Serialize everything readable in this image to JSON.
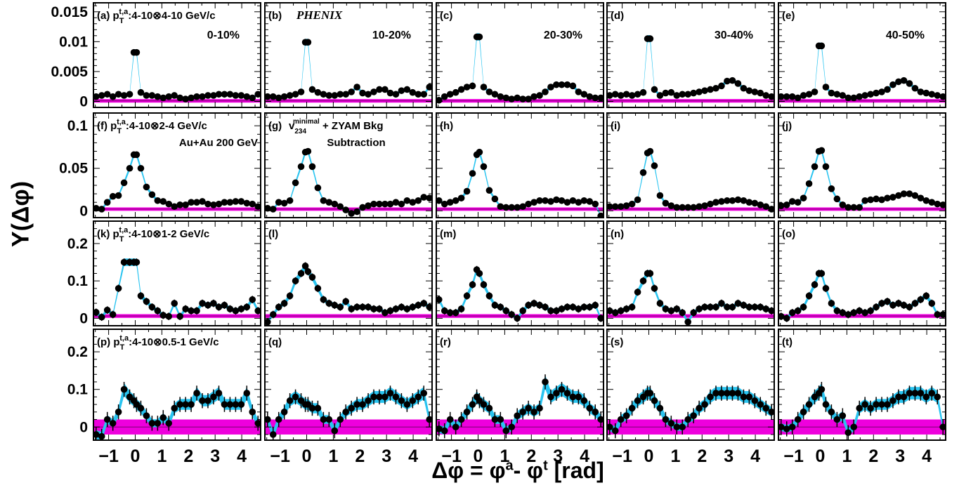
{
  "chart_data": {
    "type": "scatter",
    "grid": false,
    "y_axis_label": "Y(Δφ)",
    "x_axis_label": "Δφ = φa- φt [rad]",
    "x_axis_parts": {
      "lead": "Δφ = φ",
      "a_sup": "a",
      "mid": "- φ",
      "t_sup": "t",
      "unit": " [rad]"
    },
    "xlim": [
      -1.57,
      4.71
    ],
    "x_ticks": [
      -1,
      0,
      1,
      2,
      3,
      4
    ],
    "x_tick_labels": [
      "−1",
      "0",
      "1",
      "2",
      "3",
      "4"
    ],
    "x": [
      -1.47,
      -1.26,
      -1.05,
      -0.84,
      -0.63,
      -0.42,
      -0.21,
      -0.05,
      0.05,
      0.21,
      0.42,
      0.63,
      0.84,
      1.05,
      1.26,
      1.47,
      1.68,
      1.89,
      2.1,
      2.31,
      2.52,
      2.73,
      2.94,
      3.14,
      3.35,
      3.56,
      3.77,
      3.98,
      4.19,
      4.4,
      4.61
    ],
    "rows": [
      {
        "ylim": [
          -0.001,
          0.0165
        ],
        "y_ticks": [
          0,
          0.005,
          0.01,
          0.015
        ],
        "y_tick_labels": [
          "0",
          "0.005",
          "0.01",
          "0.015"
        ],
        "zyam": 0.0001,
        "zyam_err": 0.0003,
        "width": [
          0.0002,
          0.0007
        ],
        "err": 0.0003,
        "title": "pT t,a: 4-10⊗4-10 GeV/c",
        "extra_label": ""
      },
      {
        "ylim": [
          -0.008,
          0.115
        ],
        "y_ticks": [
          0,
          0.05,
          0.1
        ],
        "y_tick_labels": [
          "0",
          "0.05",
          "0.1"
        ],
        "zyam": 0.002,
        "zyam_err": 0.002,
        "width": [
          0.0015,
          0.004
        ],
        "err": 0.002,
        "title": "pT t,a: 4-10⊗2-4 GeV/c",
        "extra_label": "Au+Au 200 GeV"
      },
      {
        "ylim": [
          -0.02,
          0.26
        ],
        "y_ticks": [
          0,
          0.1,
          0.2
        ],
        "y_tick_labels": [
          "0",
          "0.1",
          "0.2"
        ],
        "zyam": 0.006,
        "zyam_err": 0.005,
        "width": [
          0.005,
          0.012
        ],
        "err": 0.01,
        "title": "pT t,a: 4-10⊗1-2 GeV/c",
        "extra_label": ""
      },
      {
        "ylim": [
          -0.035,
          0.26
        ],
        "y_ticks": [
          0,
          0.1,
          0.2
        ],
        "y_tick_labels": [
          "0",
          "0.1",
          "0.2"
        ],
        "zyam": 0.0,
        "zyam_err": 0.02,
        "width": [
          0.01,
          0.025
        ],
        "err": 0.02,
        "title": "pT t,a: 4-10⊗0.5-1 GeV/c",
        "extra_label": ""
      }
    ],
    "panels": [
      {
        "label": "(a)",
        "centrality": "0-10%",
        "y": [
          0.0008,
          0.001,
          0.0012,
          0.0008,
          0.0012,
          0.001,
          0.0012,
          0.0082,
          0.0082,
          0.0015,
          0.001,
          0.001,
          0.0008,
          0.0006,
          0.0008,
          0.001,
          0.0006,
          0.0004,
          0.0006,
          0.0008,
          0.0008,
          0.001,
          0.001,
          0.0012,
          0.0012,
          0.0012,
          0.001,
          0.001,
          0.0008,
          0.0006,
          0.0012
        ]
      },
      {
        "label": "(b)",
        "centrality": "10-20%",
        "y": [
          0.0008,
          0.0008,
          0.0006,
          0.0008,
          0.001,
          0.0012,
          0.0016,
          0.0099,
          0.0099,
          0.002,
          0.0015,
          0.0012,
          0.001,
          0.001,
          0.0012,
          0.0012,
          0.0016,
          0.0024,
          0.0014,
          0.0012,
          0.0016,
          0.002,
          0.002,
          0.0014,
          0.0012,
          0.0018,
          0.002,
          0.0015,
          0.0012,
          0.0012,
          0.0024
        ]
      },
      {
        "label": "(c)",
        "centrality": "20-30%",
        "y": [
          0.0002,
          0.0008,
          0.0012,
          0.0015,
          0.002,
          0.0024,
          0.0026,
          0.0108,
          0.0108,
          0.0024,
          0.0016,
          0.0012,
          0.0008,
          0.0006,
          0.0004,
          0.0006,
          0.0004,
          0.0004,
          0.0008,
          0.001,
          0.0016,
          0.0024,
          0.0028,
          0.0028,
          0.0028,
          0.0026,
          0.0016,
          0.0012,
          0.0008,
          0.0006,
          0.0006
        ]
      },
      {
        "label": "(d)",
        "centrality": "30-40%",
        "y": [
          0.001,
          0.0012,
          0.001,
          0.0012,
          0.001,
          0.0012,
          0.0015,
          0.0105,
          0.0105,
          0.002,
          0.001,
          0.0014,
          0.0015,
          0.001,
          0.0012,
          0.0012,
          0.0014,
          0.0016,
          0.0018,
          0.002,
          0.0022,
          0.0026,
          0.0034,
          0.0035,
          0.003,
          0.0022,
          0.0018,
          0.0016,
          0.0014,
          0.001,
          0.0008
        ]
      },
      {
        "label": "(e)",
        "centrality": "40-50%",
        "y": [
          0.0008,
          0.0008,
          0.0008,
          0.0006,
          0.001,
          0.0012,
          0.0016,
          0.0093,
          0.0093,
          0.0024,
          0.0014,
          0.0012,
          0.001,
          0.0006,
          0.0006,
          0.0008,
          0.001,
          0.0012,
          0.0014,
          0.0016,
          0.002,
          0.0028,
          0.0033,
          0.0035,
          0.003,
          0.0022,
          0.0016,
          0.0014,
          0.0012,
          0.001,
          0.0008
        ]
      },
      {
        "label": "(f)",
        "centrality": "",
        "y": [
          0.003,
          0.002,
          0.01,
          0.017,
          0.018,
          0.033,
          0.05,
          0.066,
          0.066,
          0.05,
          0.028,
          0.019,
          0.012,
          0.011,
          0.008,
          0.005,
          0.007,
          0.007,
          0.01,
          0.01,
          0.011,
          0.008,
          0.007,
          0.008,
          0.01,
          0.01,
          0.011,
          0.011,
          0.009,
          0.008,
          0.005
        ]
      },
      {
        "label": "(g)",
        "centrality": "",
        "y": [
          0.003,
          0.002,
          0.01,
          0.009,
          0.012,
          0.033,
          0.052,
          0.069,
          0.07,
          0.052,
          0.027,
          0.012,
          0.01,
          0.008,
          0.005,
          0.001,
          -0.003,
          -0.001,
          0.004,
          0.006,
          0.008,
          0.008,
          0.008,
          0.008,
          0.01,
          0.008,
          0.012,
          0.01,
          0.012,
          0.016,
          0.015
        ]
      },
      {
        "label": "(h)",
        "centrality": "",
        "y": [
          0.012,
          0.008,
          0.01,
          0.012,
          0.015,
          0.023,
          0.044,
          0.066,
          0.069,
          0.052,
          0.024,
          0.014,
          0.005,
          0.004,
          0.004,
          0.004,
          0.005,
          0.008,
          0.01,
          0.012,
          0.012,
          0.011,
          0.013,
          0.012,
          0.01,
          0.012,
          0.01,
          0.012,
          0.011,
          0.008,
          -0.006
        ]
      },
      {
        "label": "(i)",
        "centrality": "",
        "y": [
          0.005,
          0.005,
          0.005,
          0.006,
          0.008,
          0.013,
          0.045,
          0.068,
          0.07,
          0.053,
          0.018,
          0.009,
          0.006,
          0.004,
          0.004,
          0.004,
          0.004,
          0.005,
          0.006,
          0.008,
          0.01,
          0.011,
          0.012,
          0.012,
          0.013,
          0.012,
          0.01,
          0.009,
          0.007,
          0.005,
          0.002
        ]
      },
      {
        "label": "(j)",
        "centrality": "",
        "y": [
          0.006,
          0.007,
          0.011,
          0.01,
          0.015,
          0.032,
          0.052,
          0.07,
          0.071,
          0.052,
          0.026,
          0.014,
          0.007,
          0.004,
          0.004,
          0.004,
          0.012,
          0.013,
          0.014,
          0.013,
          0.015,
          0.016,
          0.018,
          0.02,
          0.02,
          0.018,
          0.015,
          0.012,
          0.01,
          0.008,
          0.007
        ]
      },
      {
        "label": "(k)",
        "centrality": "",
        "y": [
          0.016,
          0.003,
          0.022,
          0.01,
          0.08,
          0.15,
          0.15,
          0.15,
          0.15,
          0.06,
          0.045,
          0.03,
          0.02,
          0.008,
          0.005,
          0.04,
          0.005,
          0.025,
          0.02,
          0.02,
          0.04,
          0.035,
          0.04,
          0.03,
          0.035,
          0.025,
          0.02,
          0.025,
          0.03,
          0.05,
          0.02
        ]
      },
      {
        "label": "(l)",
        "centrality": "",
        "y": [
          -0.01,
          0.01,
          0.03,
          0.04,
          0.06,
          0.1,
          0.12,
          0.14,
          0.125,
          0.11,
          0.08,
          0.05,
          0.04,
          0.035,
          0.03,
          0.045,
          0.025,
          0.03,
          0.03,
          0.03,
          0.025,
          0.025,
          0.015,
          0.02,
          0.025,
          0.03,
          0.025,
          0.03,
          0.035,
          0.04,
          0.03
        ]
      },
      {
        "label": "(m)",
        "centrality": "",
        "y": [
          0.05,
          0.02,
          0.015,
          0.015,
          0.025,
          0.06,
          0.09,
          0.13,
          0.12,
          0.09,
          0.06,
          0.035,
          0.03,
          0.02,
          0.01,
          0.0,
          0.02,
          0.035,
          0.04,
          0.035,
          0.03,
          0.02,
          0.02,
          0.025,
          0.03,
          0.03,
          0.025,
          0.03,
          0.03,
          0.035,
          0.0
        ]
      },
      {
        "label": "(n)",
        "centrality": "",
        "y": [
          0.02,
          0.015,
          0.02,
          0.025,
          0.03,
          0.07,
          0.1,
          0.12,
          0.12,
          0.08,
          0.04,
          0.025,
          0.02,
          0.025,
          0.015,
          -0.01,
          0.015,
          0.025,
          0.03,
          0.03,
          0.03,
          0.04,
          0.03,
          0.03,
          0.04,
          0.035,
          0.03,
          0.03,
          0.03,
          0.025,
          0.02
        ]
      },
      {
        "label": "(o)",
        "centrality": "",
        "y": [
          0.005,
          0.0,
          0.015,
          0.02,
          0.03,
          0.06,
          0.09,
          0.12,
          0.12,
          0.08,
          0.04,
          0.02,
          0.015,
          0.01,
          0.015,
          0.02,
          0.015,
          0.02,
          0.03,
          0.04,
          0.045,
          0.035,
          0.04,
          0.035,
          0.03,
          0.04,
          0.05,
          0.06,
          0.04,
          0.01,
          0.01
        ]
      },
      {
        "label": "(p)",
        "centrality": "",
        "y": [
          -0.02,
          -0.025,
          0.02,
          0.01,
          0.04,
          0.1,
          0.08,
          0.07,
          0.06,
          0.05,
          0.03,
          0.01,
          0.01,
          0.025,
          0.01,
          0.05,
          0.06,
          0.06,
          0.06,
          0.09,
          0.07,
          0.07,
          0.08,
          0.09,
          0.06,
          0.06,
          0.06,
          0.06,
          0.09,
          0.04,
          0.01
        ]
      },
      {
        "label": "(q)",
        "centrality": "",
        "y": [
          0.02,
          -0.02,
          0.02,
          0.04,
          0.07,
          0.08,
          0.07,
          0.06,
          0.06,
          0.05,
          0.05,
          0.02,
          0.02,
          -0.01,
          0.02,
          0.04,
          0.05,
          0.06,
          0.06,
          0.07,
          0.08,
          0.08,
          0.08,
          0.09,
          0.08,
          0.07,
          0.06,
          0.07,
          0.08,
          0.09,
          0.02
        ]
      },
      {
        "label": "(r)",
        "centrality": "",
        "y": [
          -0.005,
          -0.01,
          0.02,
          0.0,
          0.02,
          0.04,
          0.06,
          0.08,
          0.07,
          0.06,
          0.05,
          0.02,
          0.02,
          -0.01,
          0.0,
          0.03,
          0.04,
          0.05,
          0.04,
          0.05,
          0.12,
          0.08,
          0.09,
          0.1,
          0.09,
          0.08,
          0.08,
          0.07,
          0.05,
          0.04,
          0.02
        ]
      },
      {
        "label": "(s)",
        "centrality": "",
        "y": [
          0.0,
          -0.01,
          0.02,
          0.03,
          0.05,
          0.07,
          0.08,
          0.09,
          0.09,
          0.07,
          0.05,
          0.02,
          0.01,
          0.0,
          0.0,
          0.02,
          0.03,
          0.05,
          0.06,
          0.08,
          0.09,
          0.09,
          0.09,
          0.09,
          0.09,
          0.08,
          0.08,
          0.07,
          0.06,
          0.05,
          0.04
        ]
      },
      {
        "label": "(t)",
        "centrality": "",
        "y": [
          0.0,
          -0.005,
          0.0,
          0.02,
          0.04,
          0.06,
          0.08,
          0.09,
          0.1,
          0.06,
          0.04,
          0.02,
          0.03,
          -0.015,
          0.0,
          0.05,
          0.06,
          0.05,
          0.06,
          0.06,
          0.06,
          0.07,
          0.08,
          0.08,
          0.09,
          0.09,
          0.09,
          0.08,
          0.09,
          0.08,
          0.0
        ]
      }
    ],
    "annotations": {
      "experiment": "PHENIX",
      "method_line1": "v234minimal + ZYAM Bkg",
      "method_line2": "Subtraction",
      "method_parts": {
        "v": "v",
        "sub": "234",
        "sup": "minimal",
        "rest": " + ZYAM Bkg"
      },
      "pt_label_parts": {
        "p": "p",
        "sub": "T",
        "sup": "t,a"
      },
      "pt_ranges": [
        "4-10⊗4-10 GeV/c",
        "4-10⊗2-4 GeV/c",
        "4-10⊗1-2 GeV/c",
        "4-10⊗0.5-1 GeV/c"
      ],
      "system": "Au+Au 200 GeV"
    },
    "colors": {
      "band": "#29c4f0",
      "zyam": "#ee00dd",
      "marker": "#000000",
      "axis": "#000000"
    }
  }
}
